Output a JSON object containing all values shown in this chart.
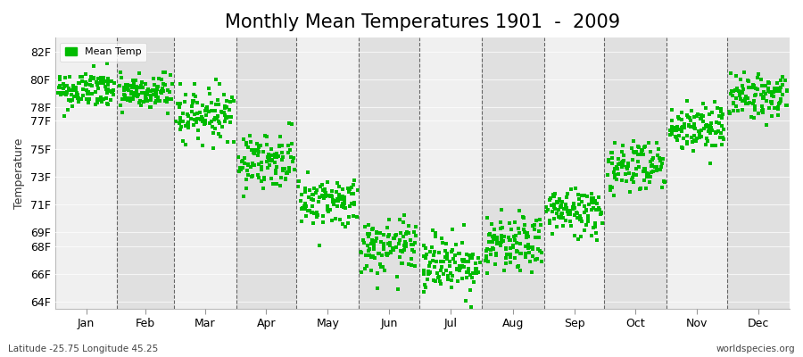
{
  "title": "Monthly Mean Temperatures 1901  -  2009",
  "ylabel": "Temperature",
  "xlabel_labels": [
    "Jan",
    "Feb",
    "Mar",
    "Apr",
    "May",
    "Jun",
    "Jul",
    "Aug",
    "Sep",
    "Oct",
    "Nov",
    "Dec"
  ],
  "ytick_labels": [
    "64F",
    "66F",
    "68F",
    "69F",
    "71F",
    "73F",
    "75F",
    "77F",
    "78F",
    "80F",
    "82F"
  ],
  "ytick_values": [
    64,
    66,
    68,
    69,
    71,
    73,
    75,
    77,
    78,
    80,
    82
  ],
  "ylim": [
    63.5,
    83.0
  ],
  "background_color": "#ffffff",
  "plot_bg_light": "#f0f0f0",
  "plot_bg_dark": "#e0e0e0",
  "dot_color": "#00bb00",
  "legend_label": "Mean Temp",
  "footer_left": "Latitude -25.75 Longitude 45.25",
  "footer_right": "worldspecies.org",
  "title_fontsize": 15,
  "label_fontsize": 9,
  "monthly_means": [
    79.2,
    79.0,
    77.5,
    74.2,
    71.2,
    67.8,
    66.8,
    68.0,
    70.5,
    73.8,
    76.5,
    78.8
  ],
  "monthly_std": [
    0.7,
    0.7,
    0.9,
    1.0,
    0.9,
    1.0,
    1.1,
    1.0,
    0.9,
    1.0,
    0.9,
    0.8
  ],
  "n_years": 109,
  "seed": 42
}
